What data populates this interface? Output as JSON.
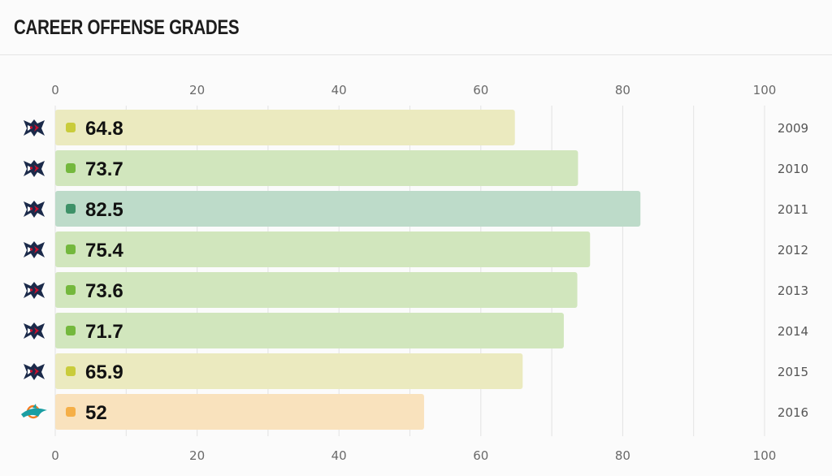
{
  "header": {
    "title": "CAREER OFFENSE GRADES"
  },
  "chart_data": {
    "type": "bar",
    "orientation": "horizontal",
    "title": "CAREER OFFENSE GRADES",
    "categories": [
      "2009",
      "2010",
      "2011",
      "2012",
      "2013",
      "2014",
      "2015",
      "2016"
    ],
    "values": [
      64.8,
      73.7,
      82.5,
      75.4,
      73.6,
      71.7,
      65.9,
      52
    ],
    "value_labels": [
      "64.8",
      "73.7",
      "82.5",
      "75.4",
      "73.6",
      "71.7",
      "65.9",
      "52"
    ],
    "teams": [
      "texans-logo-icon",
      "texans-logo-icon",
      "texans-logo-icon",
      "texans-logo-icon",
      "texans-logo-icon",
      "texans-logo-icon",
      "texans-logo-icon",
      "dolphins-logo-icon"
    ],
    "xlim": [
      0,
      100
    ],
    "ticks": [
      0,
      20,
      40,
      60,
      80,
      100
    ],
    "tick_labels": [
      "0",
      "20",
      "40",
      "60",
      "80",
      "100"
    ],
    "grid": true,
    "axis_labels_position": "top and bottom",
    "colors": {
      "bar_fills": [
        "#ebeabf",
        "#d1e6bd",
        "#bddbc9",
        "#d1e6bd",
        "#d1e6bd",
        "#d1e6bd",
        "#ebeabf",
        "#f9e2bd"
      ],
      "markers": [
        "#c9cc3b",
        "#74b83d",
        "#3e9168",
        "#74b83d",
        "#74b83d",
        "#74b83d",
        "#c9cc3b",
        "#f5af47"
      ],
      "texans_navy": "#1b2a4a",
      "texans_red": "#c8102e",
      "dolphins_aqua": "#1b9ea3",
      "dolphins_orange": "#f47b20",
      "grid": "#e3e3e3"
    }
  }
}
